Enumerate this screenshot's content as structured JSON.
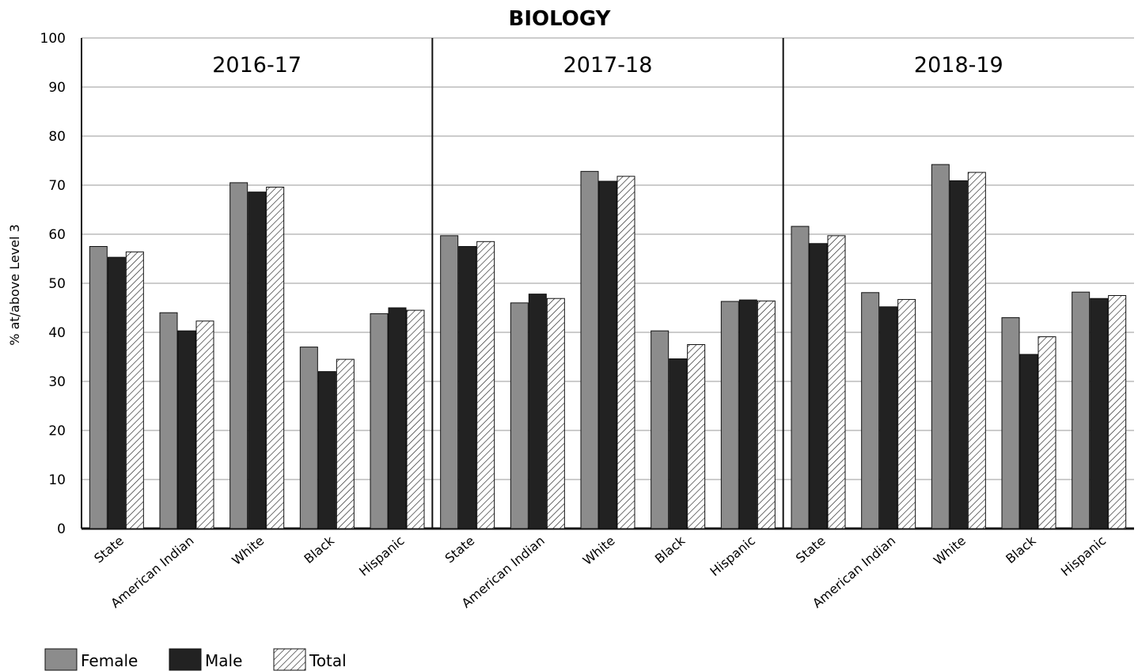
{
  "chart_data": {
    "type": "bar",
    "title": "BIOLOGY",
    "ylabel": "% at/above Level 3",
    "xlabel": "",
    "ylim": [
      0,
      100
    ],
    "yticks": [
      0,
      10,
      20,
      30,
      40,
      50,
      60,
      70,
      80,
      90,
      100
    ],
    "grid": true,
    "legend_position": "bottom-left",
    "series_names": [
      "Female",
      "Male",
      "Total"
    ],
    "series_colors": {
      "Female": "#8c8c8c",
      "Male": "#222222",
      "Total": "hatched"
    },
    "categories": [
      "State",
      "American Indian",
      "White",
      "Black",
      "Hispanic"
    ],
    "panels": [
      {
        "label": "2016-17",
        "series": [
          {
            "name": "Female",
            "values": [
              57.5,
              44,
              70.5,
              37,
              43.8
            ]
          },
          {
            "name": "Male",
            "values": [
              55.3,
              40.3,
              68.6,
              32,
              45
            ]
          },
          {
            "name": "Total",
            "values": [
              56.4,
              42.3,
              69.6,
              34.5,
              44.5
            ]
          }
        ]
      },
      {
        "label": "2017-18",
        "series": [
          {
            "name": "Female",
            "values": [
              59.7,
              46,
              72.8,
              40.3,
              46.3
            ]
          },
          {
            "name": "Male",
            "values": [
              57.5,
              47.8,
              70.8,
              34.6,
              46.6
            ]
          },
          {
            "name": "Total",
            "values": [
              58.5,
              46.9,
              71.8,
              37.5,
              46.4
            ]
          }
        ]
      },
      {
        "label": "2018-19",
        "series": [
          {
            "name": "Female",
            "values": [
              61.6,
              48.1,
              74.2,
              43,
              48.2
            ]
          },
          {
            "name": "Male",
            "values": [
              58.1,
              45.2,
              70.9,
              35.5,
              46.9
            ]
          },
          {
            "name": "Total",
            "values": [
              59.7,
              46.7,
              72.6,
              39.1,
              47.5
            ]
          }
        ]
      }
    ]
  }
}
